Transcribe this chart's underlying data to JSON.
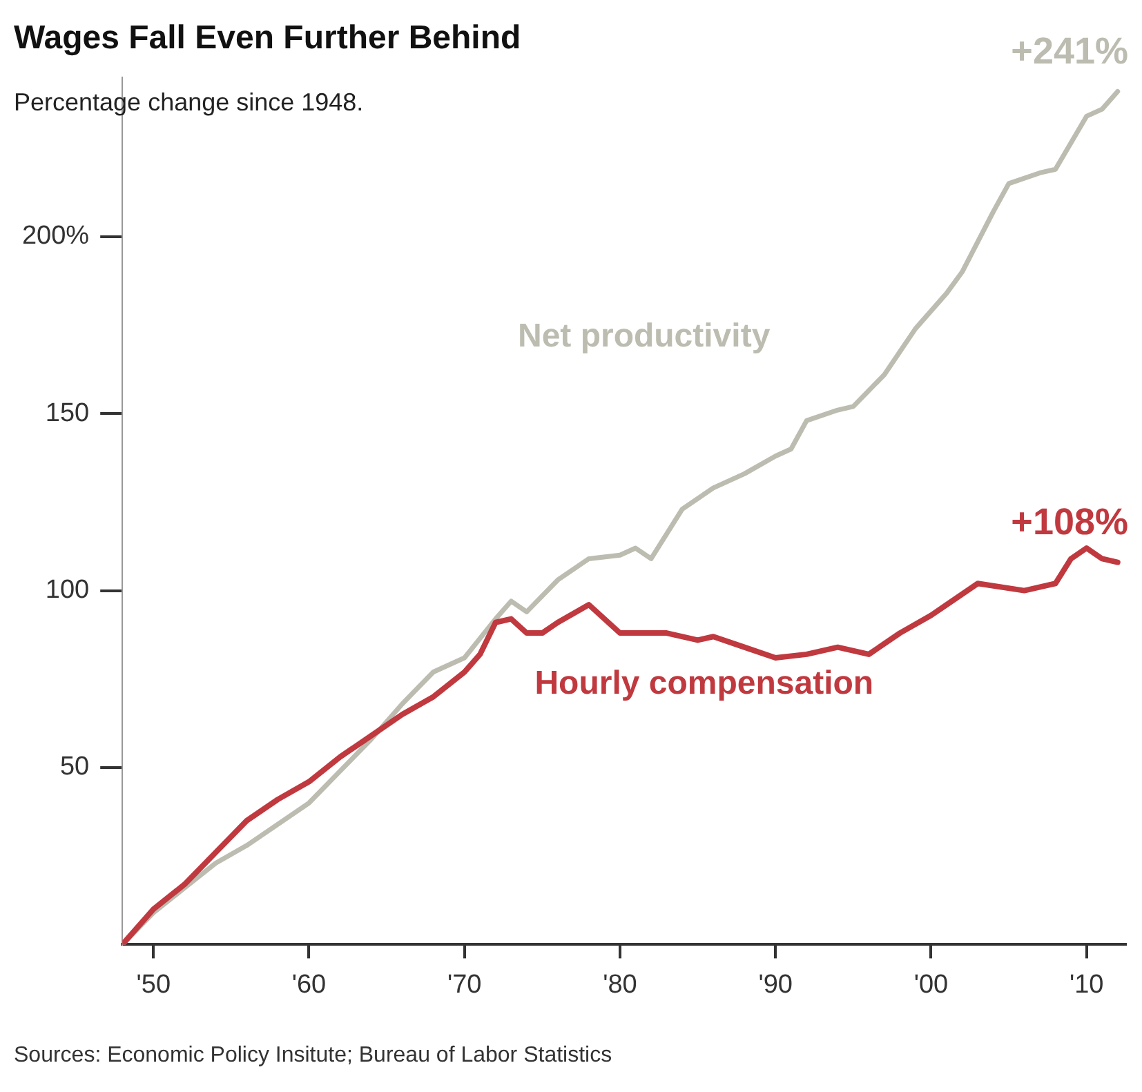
{
  "chart_data": {
    "type": "line",
    "title": "Wages Fall Even Further Behind",
    "subtitle": "Percentage change since 1948.",
    "series": [
      {
        "name": "Net productivity",
        "color": "#bcbcb0",
        "x": [
          1948,
          1950,
          1952,
          1954,
          1956,
          1958,
          1960,
          1962,
          1964,
          1966,
          1968,
          1970,
          1972,
          1973,
          1974,
          1976,
          1978,
          1980,
          1981,
          1982,
          1984,
          1986,
          1988,
          1990,
          1991,
          1992,
          1994,
          1995,
          1997,
          1999,
          2001,
          2002,
          2004,
          2005,
          2007,
          2008,
          2010,
          2011,
          2012
        ],
        "values": [
          0,
          9,
          16,
          23,
          28,
          34,
          40,
          49,
          58,
          68,
          77,
          81,
          92,
          97,
          94,
          103,
          109,
          110,
          112,
          109,
          123,
          129,
          133,
          138,
          140,
          148,
          151,
          152,
          161,
          174,
          184,
          190,
          207,
          215,
          218,
          219,
          234,
          236,
          241
        ]
      },
      {
        "name": "Hourly compensation",
        "color": "#c0393f",
        "x": [
          1948,
          1950,
          1952,
          1954,
          1956,
          1958,
          1960,
          1962,
          1964,
          1966,
          1968,
          1970,
          1971,
          1972,
          1973,
          1974,
          1975,
          1976,
          1978,
          1980,
          1983,
          1985,
          1986,
          1988,
          1990,
          1992,
          1994,
          1996,
          1998,
          2000,
          2001,
          2003,
          2006,
          2008,
          2009,
          2010,
          2011,
          2012
        ],
        "values": [
          0,
          10,
          17,
          26,
          35,
          41,
          46,
          53,
          59,
          65,
          70,
          77,
          82,
          91,
          92,
          88,
          88,
          91,
          96,
          88,
          88,
          86,
          87,
          84,
          81,
          82,
          84,
          82,
          88,
          93,
          96,
          102,
          100,
          102,
          109,
          112,
          109,
          108
        ]
      }
    ],
    "xlim": [
      1948,
      2012.5
    ],
    "xticks": [
      {
        "value": 1950,
        "label": "'50"
      },
      {
        "value": 1960,
        "label": "'60"
      },
      {
        "value": 1970,
        "label": "'70"
      },
      {
        "value": 1980,
        "label": "'80"
      },
      {
        "value": 1990,
        "label": "'90"
      },
      {
        "value": 2000,
        "label": "'00"
      },
      {
        "value": 2010,
        "label": "'10"
      }
    ],
    "ylim": [
      0,
      245
    ],
    "yticks": [
      50,
      100,
      150,
      {
        "value": 200,
        "label": "200%"
      }
    ],
    "grid": false,
    "legend": false,
    "marker": "none",
    "line_style": "solid",
    "annotations": [
      {
        "text": "+241%",
        "x": 2012,
        "y": 241
      },
      {
        "text": "+108%",
        "x": 2012,
        "y": 108
      },
      "Sources: Economic Policy Insitute; Bureau of Labor Statistics"
    ]
  }
}
